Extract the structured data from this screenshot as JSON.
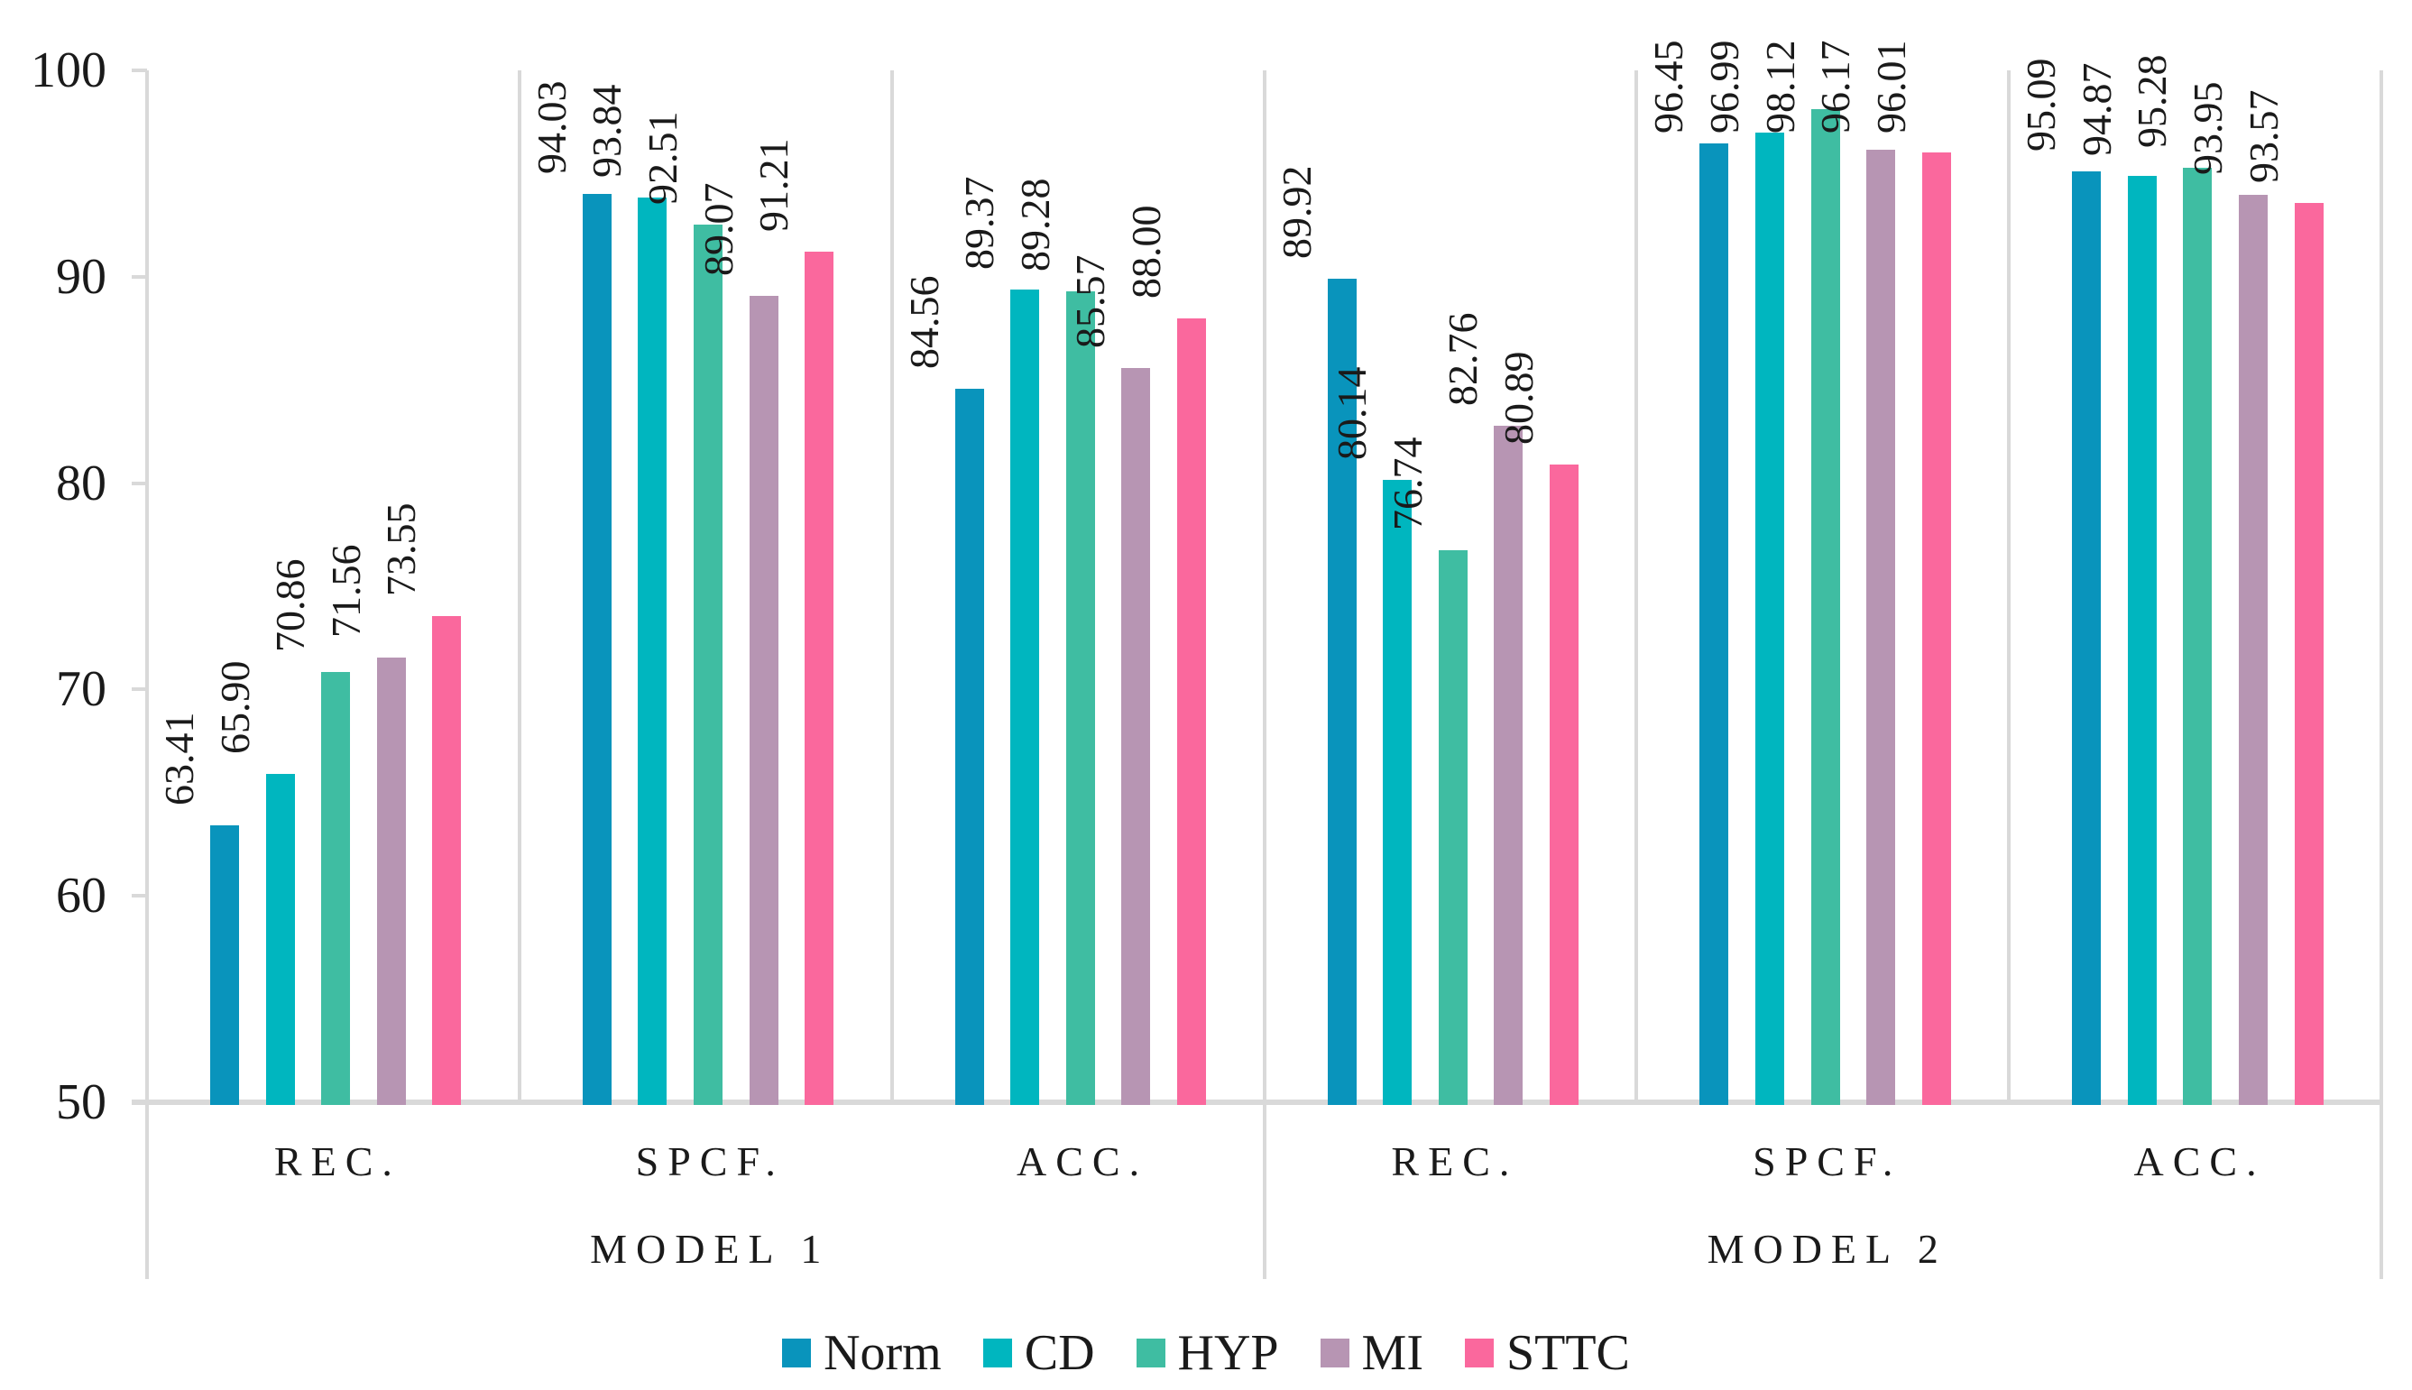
{
  "chart_data": {
    "type": "bar",
    "title": "",
    "y_axis": {
      "min": 50,
      "max": 100,
      "step": 10,
      "tick_labels": [
        "100",
        "90",
        "80",
        "70",
        "60",
        "50"
      ]
    },
    "group_labels": [
      "MODEL 1",
      "MODEL 2"
    ],
    "categories": [
      "REC.",
      "SPCF.",
      "ACC.",
      "REC.",
      "SPCF.",
      "ACC."
    ],
    "series": [
      {
        "name": "Norm",
        "color": "#0994BC",
        "values": [
          63.41,
          94.03,
          84.56,
          89.92,
          96.45,
          95.09
        ]
      },
      {
        "name": "CD",
        "color": "#00B6BF",
        "values": [
          65.9,
          93.84,
          89.37,
          80.14,
          96.99,
          94.87
        ]
      },
      {
        "name": "HYP",
        "color": "#3FBDA2",
        "values": [
          70.86,
          92.51,
          89.28,
          76.74,
          98.12,
          95.28
        ]
      },
      {
        "name": "MI",
        "color": "#B795B3",
        "values": [
          71.56,
          89.07,
          85.57,
          82.76,
          96.17,
          93.95
        ]
      },
      {
        "name": "STTC",
        "color": "#FA689D",
        "values": [
          73.55,
          91.21,
          88.0,
          80.89,
          96.01,
          93.57
        ]
      }
    ],
    "value_label_decimals": 2,
    "legend": {
      "position": "bottom",
      "entries": [
        "Norm",
        "CD",
        "HYP",
        "MI",
        "STTC"
      ]
    },
    "gridlines": false,
    "axis_line_color": "#D9D9D9",
    "text_color": "#1A1A1A"
  }
}
